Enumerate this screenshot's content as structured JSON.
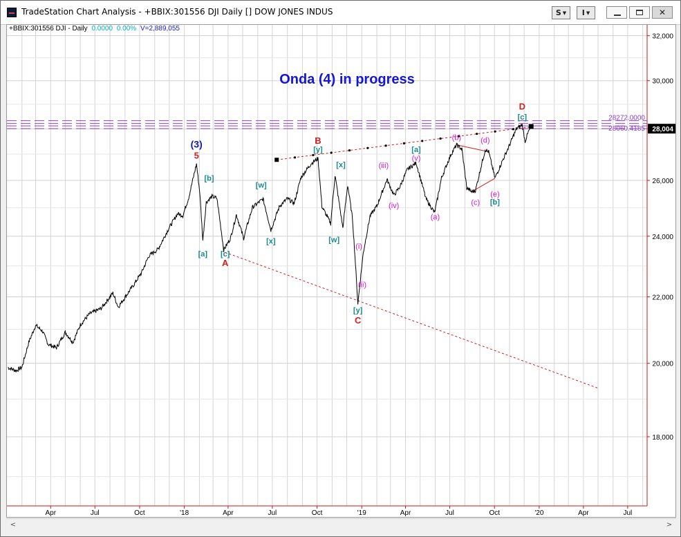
{
  "window": {
    "title": "TradeStation Chart Analysis - +BBIX:301556 DJI Daily [] DOW JONES INDUS",
    "btn_s": "S",
    "btn_i": "I"
  },
  "info": {
    "symbol": "+BBIX:301556 DJI - Daily",
    "change": "0.0000",
    "change_pct": "0.00%",
    "volume": "V=2,889,055"
  },
  "colors": {
    "background": "#ffffff",
    "price": "#000000",
    "info_change": "#00b0c8",
    "info_volume": "#1a1ad0",
    "title": "#1515d5",
    "red_label": "#d21e1e",
    "teal_label": "#1a8a8a",
    "magenta_label": "#d418d4",
    "blue_label": "#1515b8",
    "purple_line": "#8a40c8",
    "axis_red": "#c81414"
  },
  "chart_data": {
    "type": "line",
    "title": "Onda (4) in progress",
    "xlabel": "",
    "ylabel": "",
    "y_scale": "log",
    "ylim": [
      16300,
      32500
    ],
    "x_range": [
      "2017-01-01",
      "2020-08-10"
    ],
    "grid": true,
    "x_tick_labels": [
      "Apr",
      "Jul",
      "Oct",
      "'18",
      "Apr",
      "Jul",
      "Oct",
      "'19",
      "Apr",
      "Jul",
      "Oct",
      "'20",
      "Apr",
      "Jul"
    ],
    "y_tick_labels": [
      "32,000",
      "30,000",
      "28,000",
      "26,000",
      "24,000",
      "22,000",
      "20,000",
      "18,000"
    ],
    "last_price_label": "28,004",
    "series": [
      {
        "values": [
          [
            "2017-01-03",
            19880
          ],
          [
            "2017-01-20",
            19790
          ],
          [
            "2017-02-01",
            19890
          ],
          [
            "2017-02-15",
            20610
          ],
          [
            "2017-03-01",
            21120
          ],
          [
            "2017-03-15",
            20950
          ],
          [
            "2017-03-27",
            20550
          ],
          [
            "2017-04-13",
            20450
          ],
          [
            "2017-05-01",
            20910
          ],
          [
            "2017-05-17",
            20610
          ],
          [
            "2017-06-01",
            21140
          ],
          [
            "2017-06-20",
            21470
          ],
          [
            "2017-07-14",
            21640
          ],
          [
            "2017-08-07",
            22120
          ],
          [
            "2017-08-18",
            21680
          ],
          [
            "2017-09-01",
            21990
          ],
          [
            "2017-09-20",
            22410
          ],
          [
            "2017-10-05",
            22780
          ],
          [
            "2017-10-20",
            23330
          ],
          [
            "2017-11-08",
            23560
          ],
          [
            "2017-11-30",
            24270
          ],
          [
            "2017-12-18",
            24790
          ],
          [
            "2017-12-29",
            24720
          ],
          [
            "2018-01-10",
            25370
          ],
          [
            "2018-01-26",
            26620
          ],
          [
            "2018-02-02",
            25520
          ],
          [
            "2018-02-08",
            23860
          ],
          [
            "2018-02-15",
            25200
          ],
          [
            "2018-02-27",
            25410
          ],
          [
            "2018-03-09",
            25340
          ],
          [
            "2018-03-23",
            23530
          ],
          [
            "2018-04-06",
            23930
          ],
          [
            "2018-04-18",
            24750
          ],
          [
            "2018-05-03",
            23930
          ],
          [
            "2018-05-21",
            25010
          ],
          [
            "2018-06-12",
            25320
          ],
          [
            "2018-06-28",
            24210
          ],
          [
            "2018-07-16",
            25060
          ],
          [
            "2018-08-01",
            25330
          ],
          [
            "2018-08-15",
            25160
          ],
          [
            "2018-08-29",
            26120
          ],
          [
            "2018-09-20",
            26660
          ],
          [
            "2018-10-03",
            26830
          ],
          [
            "2018-10-11",
            25050
          ],
          [
            "2018-10-29",
            24440
          ],
          [
            "2018-11-07",
            26190
          ],
          [
            "2018-11-23",
            24290
          ],
          [
            "2018-12-03",
            25830
          ],
          [
            "2018-12-13",
            24600
          ],
          [
            "2018-12-24",
            21790
          ],
          [
            "2019-01-04",
            23430
          ],
          [
            "2019-01-18",
            24700
          ],
          [
            "2019-02-01",
            25060
          ],
          [
            "2019-02-22",
            26030
          ],
          [
            "2019-03-08",
            25450
          ],
          [
            "2019-03-20",
            25750
          ],
          [
            "2019-04-05",
            26420
          ],
          [
            "2019-04-23",
            26660
          ],
          [
            "2019-05-13",
            25320
          ],
          [
            "2019-05-31",
            24820
          ],
          [
            "2019-06-14",
            26090
          ],
          [
            "2019-07-03",
            26970
          ],
          [
            "2019-07-15",
            27360
          ],
          [
            "2019-07-26",
            27190
          ],
          [
            "2019-08-05",
            25720
          ],
          [
            "2019-08-15",
            25580
          ],
          [
            "2019-08-23",
            25630
          ],
          [
            "2019-09-12",
            27180
          ],
          [
            "2019-09-19",
            27090
          ],
          [
            "2019-10-02",
            26080
          ],
          [
            "2019-10-18",
            26770
          ],
          [
            "2019-11-01",
            27350
          ],
          [
            "2019-11-15",
            28000
          ],
          [
            "2019-11-27",
            28160
          ],
          [
            "2019-12-03",
            27500
          ],
          [
            "2019-12-10",
            27880
          ],
          [
            "2019-12-13",
            28004
          ]
        ]
      }
    ],
    "reference_lines": [
      {
        "label": "28272.0000",
        "y": 28272
      },
      {
        "label": "28060.4185",
        "y": 28060
      }
    ],
    "trendlines": [
      {
        "name": "upper",
        "from": [
          "2018-07-10",
          26780
        ],
        "to": [
          "2019-12-16",
          28080
        ],
        "dashed": true
      },
      {
        "name": "lower",
        "from": [
          "2018-03-26",
          23450
        ],
        "to": [
          "2020-05-01",
          19300
        ],
        "dashed": true
      }
    ],
    "annotations": [
      {
        "text": "(3)",
        "x": "2018-01-26",
        "y": 27250,
        "color": "blue"
      },
      {
        "text": "5",
        "x": "2018-01-26",
        "y": 26820,
        "color": "red"
      },
      {
        "text": "[a]",
        "x": "2018-02-08",
        "y": 23320,
        "color": "teal"
      },
      {
        "text": "[b]",
        "x": "2018-02-21",
        "y": 25990,
        "color": "teal"
      },
      {
        "text": "[c]",
        "x": "2018-03-26",
        "y": 23320,
        "color": "teal"
      },
      {
        "text": "A",
        "x": "2018-03-26",
        "y": 22990,
        "color": "red"
      },
      {
        "text": "[w]",
        "x": "2018-06-08",
        "y": 25730,
        "color": "teal"
      },
      {
        "text": "[x]",
        "x": "2018-06-28",
        "y": 23750,
        "color": "teal"
      },
      {
        "text": "B",
        "x": "2018-10-03",
        "y": 27400,
        "color": "red"
      },
      {
        "text": "[y]",
        "x": "2018-10-03",
        "y": 27080,
        "color": "teal"
      },
      {
        "text": "[w]",
        "x": "2018-11-05",
        "y": 23790,
        "color": "teal"
      },
      {
        "text": "[x]",
        "x": "2018-11-19",
        "y": 26500,
        "color": "teal"
      },
      {
        "text": "(i)",
        "x": "2018-12-26",
        "y": 23570,
        "color": "magenta"
      },
      {
        "text": "(ii)",
        "x": "2019-01-02",
        "y": 22310,
        "color": "magenta"
      },
      {
        "text": "[y]",
        "x": "2018-12-24",
        "y": 21500,
        "color": "teal"
      },
      {
        "text": "C",
        "x": "2018-12-24",
        "y": 21180,
        "color": "red"
      },
      {
        "text": "(iii)",
        "x": "2019-02-15",
        "y": 26470,
        "color": "magenta"
      },
      {
        "text": "(iv)",
        "x": "2019-03-08",
        "y": 24990,
        "color": "magenta"
      },
      {
        "text": "[a]",
        "x": "2019-04-23",
        "y": 27080,
        "color": "teal"
      },
      {
        "text": "(v)",
        "x": "2019-04-23",
        "y": 26750,
        "color": "magenta"
      },
      {
        "text": "(a)",
        "x": "2019-06-01",
        "y": 24590,
        "color": "magenta"
      },
      {
        "text": "(b)",
        "x": "2019-07-15",
        "y": 27560,
        "color": "magenta"
      },
      {
        "text": "(c)",
        "x": "2019-08-23",
        "y": 25100,
        "color": "magenta"
      },
      {
        "text": "(d)",
        "x": "2019-09-12",
        "y": 27450,
        "color": "magenta"
      },
      {
        "text": "(e)",
        "x": "2019-10-02",
        "y": 25400,
        "color": "magenta"
      },
      {
        "text": "[b]",
        "x": "2019-10-02",
        "y": 25110,
        "color": "teal"
      },
      {
        "text": "[c]",
        "x": "2019-11-27",
        "y": 28370,
        "color": "teal"
      },
      {
        "text": "D",
        "x": "2019-11-27",
        "y": 28790,
        "color": "red"
      }
    ]
  }
}
